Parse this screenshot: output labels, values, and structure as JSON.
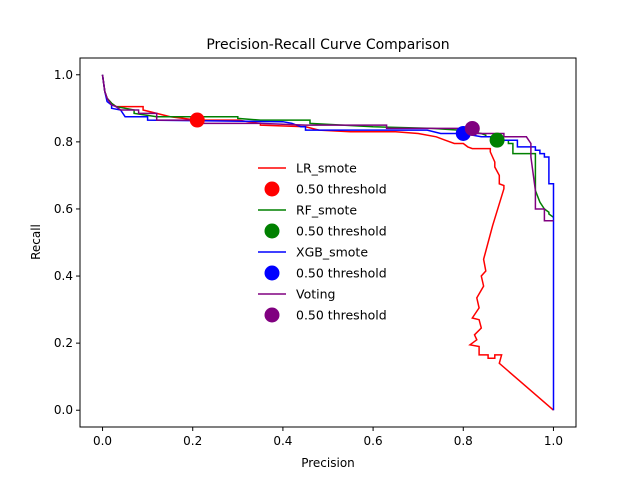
{
  "chart_data": {
    "type": "line",
    "title": "Precision-Recall Curve Comparison",
    "xlabel": "Precision",
    "ylabel": "Recall",
    "xlim": [
      -0.05,
      1.05
    ],
    "ylim": [
      -0.05,
      1.05
    ],
    "xticks": [
      "0.0",
      "0.2",
      "0.4",
      "0.6",
      "0.8",
      "1.0"
    ],
    "yticks": [
      "0.0",
      "0.2",
      "0.4",
      "0.6",
      "0.8",
      "1.0"
    ],
    "grid": false,
    "legend_position": "center",
    "series": [
      {
        "name": "LR_smote",
        "color": "#ff0000",
        "threshold_label": "0.50 threshold",
        "threshold_point": [
          0.21,
          0.865
        ],
        "points": [
          [
            0,
            1.0
          ],
          [
            0.005,
            0.95
          ],
          [
            0.01,
            0.93
          ],
          [
            0.02,
            0.915
          ],
          [
            0.03,
            0.905
          ],
          [
            0.05,
            0.905
          ],
          [
            0.09,
            0.905
          ],
          [
            0.09,
            0.895
          ],
          [
            0.12,
            0.885
          ],
          [
            0.15,
            0.875
          ],
          [
            0.21,
            0.865
          ],
          [
            0.3,
            0.865
          ],
          [
            0.35,
            0.855
          ],
          [
            0.35,
            0.85
          ],
          [
            0.45,
            0.845
          ],
          [
            0.48,
            0.835
          ],
          [
            0.55,
            0.83
          ],
          [
            0.65,
            0.83
          ],
          [
            0.7,
            0.825
          ],
          [
            0.74,
            0.815
          ],
          [
            0.76,
            0.805
          ],
          [
            0.78,
            0.795
          ],
          [
            0.8,
            0.795
          ],
          [
            0.81,
            0.785
          ],
          [
            0.82,
            0.78
          ],
          [
            0.86,
            0.78
          ],
          [
            0.86,
            0.77
          ],
          [
            0.87,
            0.74
          ],
          [
            0.87,
            0.725
          ],
          [
            0.88,
            0.7
          ],
          [
            0.88,
            0.675
          ],
          [
            0.89,
            0.67
          ],
          [
            0.89,
            0.66
          ],
          [
            0.865,
            0.55
          ],
          [
            0.845,
            0.45
          ],
          [
            0.85,
            0.415
          ],
          [
            0.84,
            0.4
          ],
          [
            0.845,
            0.37
          ],
          [
            0.83,
            0.335
          ],
          [
            0.835,
            0.305
          ],
          [
            0.82,
            0.275
          ],
          [
            0.835,
            0.27
          ],
          [
            0.84,
            0.245
          ],
          [
            0.825,
            0.225
          ],
          [
            0.83,
            0.21
          ],
          [
            0.815,
            0.195
          ],
          [
            0.835,
            0.19
          ],
          [
            0.835,
            0.165
          ],
          [
            0.855,
            0.165
          ],
          [
            0.855,
            0.155
          ],
          [
            0.87,
            0.155
          ],
          [
            0.87,
            0.165
          ],
          [
            0.885,
            0.165
          ],
          [
            0.88,
            0.14
          ],
          [
            1.0,
            0.0
          ]
        ]
      },
      {
        "name": "RF_smote",
        "color": "#008000",
        "threshold_label": "0.50 threshold",
        "threshold_point": [
          0.875,
          0.805
        ],
        "points": [
          [
            0,
            1.0
          ],
          [
            0.005,
            0.95
          ],
          [
            0.01,
            0.93
          ],
          [
            0.02,
            0.915
          ],
          [
            0.03,
            0.905
          ],
          [
            0.05,
            0.9
          ],
          [
            0.07,
            0.895
          ],
          [
            0.07,
            0.885
          ],
          [
            0.12,
            0.875
          ],
          [
            0.19,
            0.875
          ],
          [
            0.3,
            0.875
          ],
          [
            0.3,
            0.87
          ],
          [
            0.35,
            0.865
          ],
          [
            0.46,
            0.865
          ],
          [
            0.46,
            0.855
          ],
          [
            0.6,
            0.845
          ],
          [
            0.73,
            0.84
          ],
          [
            0.79,
            0.835
          ],
          [
            0.84,
            0.825
          ],
          [
            0.85,
            0.82
          ],
          [
            0.85,
            0.815
          ],
          [
            0.87,
            0.815
          ],
          [
            0.87,
            0.805
          ],
          [
            0.9,
            0.805
          ],
          [
            0.9,
            0.795
          ],
          [
            0.91,
            0.795
          ],
          [
            0.91,
            0.765
          ],
          [
            0.96,
            0.765
          ],
          [
            0.96,
            0.7
          ],
          [
            0.96,
            0.655
          ],
          [
            0.97,
            0.62
          ],
          [
            0.98,
            0.6
          ],
          [
            0.99,
            0.59
          ],
          [
            0.99,
            0.585
          ],
          [
            1.0,
            0.575
          ]
        ]
      },
      {
        "name": "XGB_smote",
        "color": "#0000ff",
        "threshold_label": "0.50 threshold",
        "threshold_point": [
          0.8,
          0.825
        ],
        "points": [
          [
            0,
            1.0
          ],
          [
            0.005,
            0.95
          ],
          [
            0.01,
            0.92
          ],
          [
            0.02,
            0.91
          ],
          [
            0.02,
            0.9
          ],
          [
            0.04,
            0.895
          ],
          [
            0.05,
            0.875
          ],
          [
            0.1,
            0.875
          ],
          [
            0.1,
            0.865
          ],
          [
            0.4,
            0.86
          ],
          [
            0.42,
            0.855
          ],
          [
            0.44,
            0.845
          ],
          [
            0.45,
            0.845
          ],
          [
            0.45,
            0.835
          ],
          [
            0.72,
            0.835
          ],
          [
            0.75,
            0.825
          ],
          [
            0.8,
            0.825
          ],
          [
            0.84,
            0.815
          ],
          [
            0.88,
            0.815
          ],
          [
            0.88,
            0.805
          ],
          [
            0.92,
            0.805
          ],
          [
            0.92,
            0.785
          ],
          [
            0.96,
            0.785
          ],
          [
            0.96,
            0.775
          ],
          [
            0.97,
            0.775
          ],
          [
            0.97,
            0.765
          ],
          [
            0.98,
            0.765
          ],
          [
            0.98,
            0.755
          ],
          [
            0.99,
            0.755
          ],
          [
            0.99,
            0.675
          ],
          [
            1.0,
            0.675
          ],
          [
            1.0,
            0.0
          ]
        ]
      },
      {
        "name": "Voting",
        "color": "#800080",
        "threshold_label": "0.50 threshold",
        "threshold_point": [
          0.82,
          0.84
        ],
        "points": [
          [
            0,
            1.0
          ],
          [
            0.005,
            0.95
          ],
          [
            0.01,
            0.93
          ],
          [
            0.02,
            0.91
          ],
          [
            0.03,
            0.905
          ],
          [
            0.04,
            0.895
          ],
          [
            0.08,
            0.895
          ],
          [
            0.08,
            0.885
          ],
          [
            0.12,
            0.885
          ],
          [
            0.12,
            0.865
          ],
          [
            0.2,
            0.865
          ],
          [
            0.2,
            0.855
          ],
          [
            0.3,
            0.855
          ],
          [
            0.35,
            0.855
          ],
          [
            0.45,
            0.85
          ],
          [
            0.63,
            0.85
          ],
          [
            0.63,
            0.84
          ],
          [
            0.82,
            0.84
          ],
          [
            0.82,
            0.825
          ],
          [
            0.89,
            0.825
          ],
          [
            0.89,
            0.815
          ],
          [
            0.94,
            0.815
          ],
          [
            0.95,
            0.795
          ],
          [
            0.95,
            0.755
          ],
          [
            0.96,
            0.655
          ],
          [
            0.96,
            0.6
          ],
          [
            0.98,
            0.6
          ],
          [
            0.98,
            0.565
          ],
          [
            1.0,
            0.565
          ]
        ]
      }
    ]
  }
}
